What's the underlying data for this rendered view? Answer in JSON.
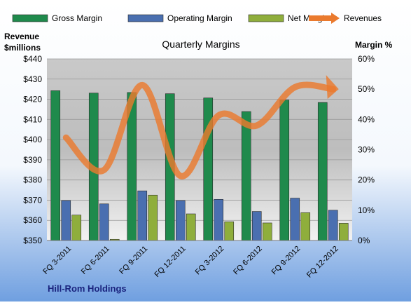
{
  "chart_data": {
    "type": "bar",
    "title": "Quarterly Margins",
    "footer": "Hill-Rom Holdings",
    "left_axis_title": [
      "Revenue",
      "$millions"
    ],
    "right_axis_title": "Margin %",
    "categories": [
      "FQ 3-2011",
      "FQ 6-2011",
      "FQ 9-2011",
      "FQ 12-2011",
      "FQ 3-2012",
      "FQ 6-2012",
      "FQ 9-2012",
      "FQ 12-2012"
    ],
    "left_axis": {
      "min": 350,
      "max": 440,
      "ticks": [
        "$350",
        "$360",
        "$370",
        "$380",
        "$390",
        "$400",
        "$410",
        "$420",
        "$430",
        "$440"
      ]
    },
    "right_axis": {
      "min": 0,
      "max": 60,
      "ticks": [
        "0%",
        "10%",
        "20%",
        "30%",
        "40%",
        "50%",
        "60%"
      ]
    },
    "series": [
      {
        "name": "Gross Margin",
        "type": "bar",
        "axis": "right",
        "color": "#1f8a4c",
        "values": [
          49.5,
          48.7,
          48.9,
          48.5,
          47.1,
          42.6,
          46.4,
          45.6
        ]
      },
      {
        "name": "Operating Margin",
        "type": "bar",
        "axis": "right",
        "color": "#4a6fb0",
        "values": [
          13.2,
          12.1,
          16.4,
          13.2,
          13.6,
          9.6,
          14.0,
          10.0
        ]
      },
      {
        "name": "Net Margin",
        "type": "bar",
        "axis": "right",
        "color": "#8fae3c",
        "values": [
          8.4,
          0.4,
          15.0,
          8.8,
          6.2,
          5.8,
          9.2,
          5.7
        ]
      },
      {
        "name": "Revenues",
        "type": "line",
        "axis": "left",
        "color": "#ea7a2e",
        "values": [
          401,
          385,
          427,
          382,
          412,
          407,
          426,
          425
        ]
      }
    ],
    "grid": true,
    "legend": "top"
  }
}
